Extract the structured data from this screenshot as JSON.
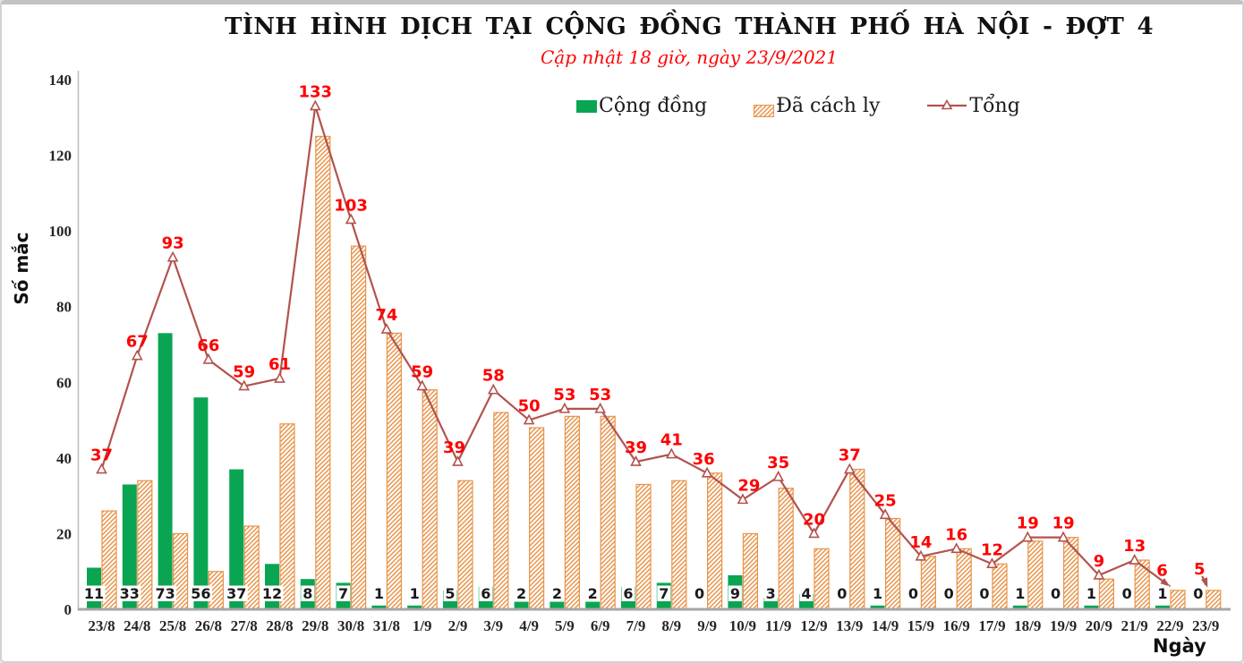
{
  "header": {
    "title": "TÌNH HÌNH DỊCH TẠI CỘNG ĐỒNG THÀNH PHỐ HÀ NỘI - ĐỢT 4",
    "subtitle": "Cập nhật 18 giờ, ngày 23/9/2021"
  },
  "legend": {
    "items": [
      {
        "label": "Cộng đồng",
        "swatch": "green-square"
      },
      {
        "label": "Đã cách ly",
        "swatch": "orange-hatched-square"
      },
      {
        "label": "Tổng",
        "swatch": "line-with-open-triangle"
      }
    ],
    "position": "top"
  },
  "axes": {
    "y_title": "Số mắc",
    "x_title": "Ngày",
    "y_ticks": [
      0,
      20,
      40,
      60,
      80,
      100,
      120,
      140
    ],
    "ylim": [
      0,
      140
    ],
    "grid": "off"
  },
  "colors": {
    "community_green": "#0AA553",
    "quarantine_orange": "#E8944A",
    "total_line": "#B2534E",
    "data_label_red": "#FE0000",
    "bar_label_black": "#1A1A1A",
    "baseline_gray": "#A6A6A6",
    "yaxis_gray": "#BFBFBF"
  },
  "chart_data": {
    "type": "bar",
    "subtype": "grouped bars with total line overlay",
    "title": "TÌNH HÌNH DỊCH TẠI CỘNG ĐỒNG THÀNH PHỐ HÀ NỘI - ĐỢT 4",
    "subtitle": "Cập nhật 18 giờ, ngày 23/9/2021",
    "xlabel": "Ngày",
    "ylabel": "Số mắc",
    "ylim": [
      0,
      140
    ],
    "legend_position": "top",
    "marker": "open-triangle",
    "categories": [
      "23/8",
      "24/8",
      "25/8",
      "26/8",
      "27/8",
      "28/8",
      "29/8",
      "30/8",
      "31/8",
      "1/9",
      "2/9",
      "3/9",
      "4/9",
      "5/9",
      "6/9",
      "7/9",
      "8/9",
      "9/9",
      "10/9",
      "11/9",
      "12/9",
      "13/9",
      "14/9",
      "15/9",
      "16/9",
      "17/9",
      "18/9",
      "19/9",
      "20/9",
      "21/9",
      "22/9",
      "23/9"
    ],
    "series": [
      {
        "name": "Cộng đồng",
        "type": "bar",
        "style": "solid-green",
        "labels_shown": true,
        "values": [
          11,
          33,
          73,
          56,
          37,
          12,
          8,
          7,
          1,
          1,
          5,
          6,
          2,
          2,
          2,
          6,
          7,
          0,
          9,
          3,
          4,
          0,
          1,
          0,
          0,
          0,
          1,
          0,
          1,
          0,
          1,
          0
        ]
      },
      {
        "name": "Đã cách ly",
        "type": "bar",
        "style": "orange-diagonal-hatch",
        "labels_shown": false,
        "values": [
          26,
          34,
          20,
          10,
          22,
          49,
          125,
          96,
          73,
          58,
          34,
          52,
          48,
          51,
          51,
          33,
          34,
          36,
          20,
          32,
          16,
          37,
          24,
          14,
          16,
          12,
          18,
          19,
          8,
          13,
          5,
          5
        ]
      },
      {
        "name": "Tổng",
        "type": "line",
        "style": "red-line-open-triangle-markers-arrow-end",
        "labels_shown": true,
        "values": [
          37,
          67,
          93,
          66,
          59,
          61,
          133,
          103,
          74,
          59,
          39,
          58,
          50,
          53,
          53,
          39,
          41,
          36,
          29,
          35,
          20,
          37,
          25,
          14,
          16,
          12,
          19,
          19,
          9,
          13,
          6,
          5
        ]
      }
    ]
  }
}
